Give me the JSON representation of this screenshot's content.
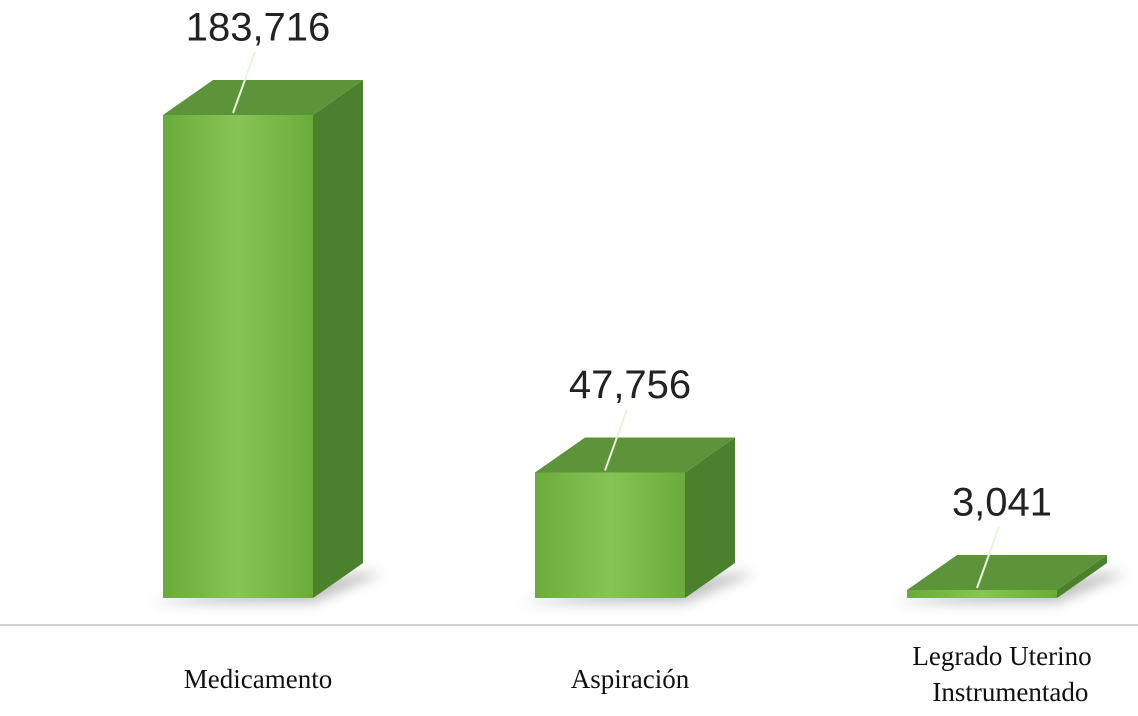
{
  "chart_data": {
    "type": "bar3d",
    "categories": [
      "Medicamento",
      "Aspiración",
      "Legrado Uterino Instrumentado"
    ],
    "values": [
      183716,
      47756,
      3041
    ],
    "value_labels": [
      "183,716",
      "47,756",
      "3,041"
    ],
    "color": "#7ab648"
  }
}
